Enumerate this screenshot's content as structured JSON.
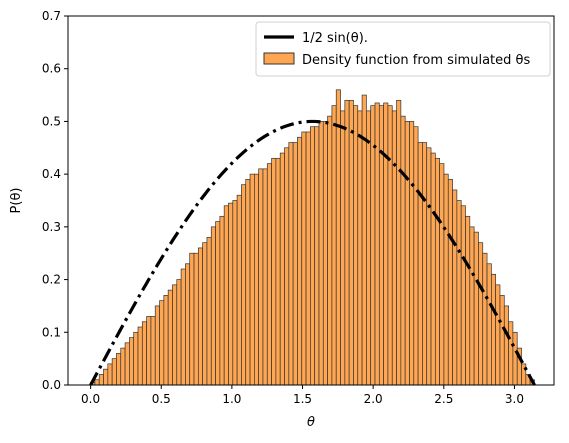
{
  "chart_data": {
    "type": "bar",
    "xlabel": "θ",
    "ylabel": "P(θ)",
    "xlim": [
      -0.16,
      3.28
    ],
    "ylim": [
      0,
      0.7
    ],
    "xticks": [
      "0.0",
      "0.5",
      "1.0",
      "1.5",
      "2.0",
      "2.5",
      "3.0"
    ],
    "yticks": [
      "0.0",
      "0.1",
      "0.2",
      "0.3",
      "0.4",
      "0.5",
      "0.6",
      "0.7"
    ],
    "grid": false,
    "legend_position": "top-right",
    "series": [
      {
        "name": "1/2 sin(θ).",
        "kind": "line",
        "style": "dashdot",
        "color": "#000000",
        "x_range": [
          0,
          3.14159
        ],
        "function": "0.5*sin(x)"
      },
      {
        "name": "Density function from simulated θs",
        "kind": "histogram",
        "color": "#ffa652",
        "edgecolor": "#333333",
        "x_start": 0.0,
        "x_end": 3.14159,
        "values": [
          0.005,
          0.01,
          0.02,
          0.03,
          0.04,
          0.05,
          0.06,
          0.07,
          0.08,
          0.09,
          0.1,
          0.11,
          0.12,
          0.13,
          0.13,
          0.15,
          0.16,
          0.17,
          0.18,
          0.19,
          0.2,
          0.22,
          0.23,
          0.25,
          0.25,
          0.26,
          0.27,
          0.28,
          0.3,
          0.31,
          0.32,
          0.34,
          0.345,
          0.35,
          0.36,
          0.38,
          0.39,
          0.4,
          0.4,
          0.41,
          0.41,
          0.42,
          0.43,
          0.43,
          0.44,
          0.45,
          0.46,
          0.46,
          0.47,
          0.48,
          0.48,
          0.49,
          0.49,
          0.5,
          0.5,
          0.51,
          0.53,
          0.56,
          0.52,
          0.54,
          0.54,
          0.53,
          0.52,
          0.55,
          0.52,
          0.53,
          0.535,
          0.53,
          0.535,
          0.53,
          0.52,
          0.54,
          0.51,
          0.5,
          0.5,
          0.49,
          0.46,
          0.46,
          0.45,
          0.44,
          0.43,
          0.42,
          0.4,
          0.39,
          0.37,
          0.35,
          0.34,
          0.32,
          0.3,
          0.29,
          0.27,
          0.25,
          0.23,
          0.21,
          0.19,
          0.17,
          0.15,
          0.12,
          0.1,
          0.07,
          0.04,
          0.02,
          0.01
        ]
      }
    ]
  }
}
